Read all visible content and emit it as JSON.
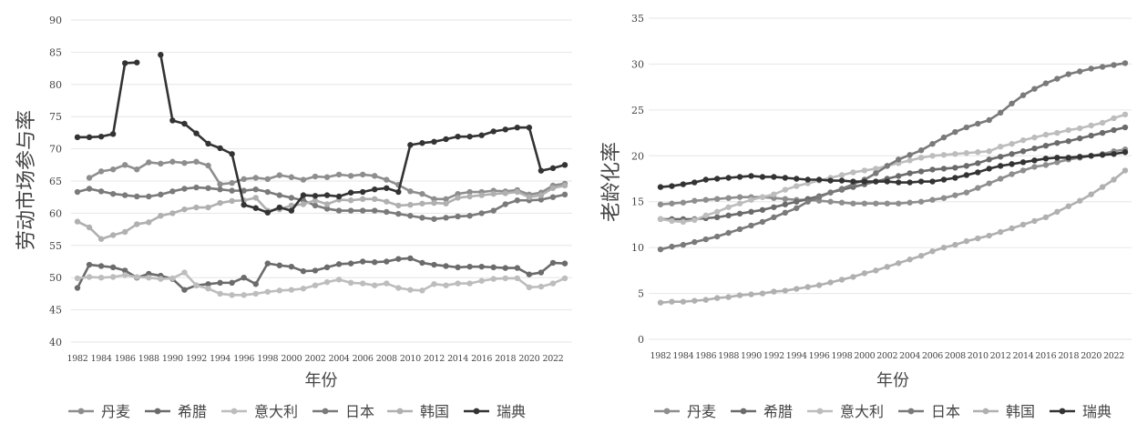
{
  "chart_data": [
    {
      "type": "line",
      "title": "",
      "xlabel": "年份",
      "ylabel": "劳动市场参与率",
      "ylim": [
        40,
        90
      ],
      "yticks": [
        40,
        45,
        50,
        55,
        60,
        65,
        70,
        75,
        80,
        85,
        90
      ],
      "x": [
        1982,
        1983,
        1984,
        1985,
        1986,
        1987,
        1988,
        1989,
        1990,
        1991,
        1992,
        1993,
        1994,
        1995,
        1996,
        1997,
        1998,
        1999,
        2000,
        2001,
        2002,
        2003,
        2004,
        2005,
        2006,
        2007,
        2008,
        2009,
        2010,
        2011,
        2012,
        2013,
        2014,
        2015,
        2016,
        2017,
        2018,
        2019,
        2020,
        2021,
        2022,
        2023
      ],
      "xtick_labels": [
        "1982",
        "1984",
        "1986",
        "1988",
        "1990",
        "1992",
        "1994",
        "1996",
        "1998",
        "2000",
        "2002",
        "2004",
        "2006",
        "2008",
        "2010",
        "2012",
        "2014",
        "2016",
        "2018",
        "2020",
        "2022"
      ],
      "grid": true,
      "legend": "bottom",
      "series": [
        {
          "name": "丹麦",
          "color": "#8e8e8e",
          "values": [
            null,
            65.5,
            66.5,
            66.8,
            67.5,
            66.8,
            67.9,
            67.7,
            68.0,
            67.8,
            68.0,
            67.4,
            64.5,
            64.7,
            65.3,
            65.5,
            65.3,
            65.9,
            65.6,
            65.2,
            65.7,
            65.6,
            66.0,
            65.8,
            66.0,
            65.8,
            65.2,
            64.4,
            63.4,
            63.0,
            62.2,
            62.2,
            63.0,
            63.3,
            63.3,
            63.5,
            63.4,
            63.6,
            62.9,
            63.2,
            64.3,
            64.6
          ]
        },
        {
          "name": "希腊",
          "color": "#6b6b6b",
          "values": [
            48.4,
            52.0,
            51.8,
            51.6,
            51.1,
            50.0,
            50.6,
            50.3,
            49.8,
            48.1,
            48.8,
            49.0,
            49.2,
            49.2,
            50.0,
            49.0,
            52.2,
            51.9,
            51.7,
            51.0,
            51.1,
            51.6,
            52.1,
            52.2,
            52.5,
            52.4,
            52.5,
            52.9,
            53.0,
            52.3,
            52.0,
            51.8,
            51.6,
            51.7,
            51.7,
            51.6,
            51.5,
            51.5,
            50.5,
            50.8,
            52.3,
            52.2
          ]
        },
        {
          "name": "意大利",
          "color": "#bdbdbd",
          "values": [
            49.9,
            50.1,
            50.0,
            50.1,
            50.4,
            50.1,
            50.0,
            49.8,
            49.9,
            50.8,
            48.8,
            48.3,
            47.5,
            47.3,
            47.3,
            47.5,
            47.8,
            48.0,
            48.1,
            48.3,
            48.8,
            49.3,
            49.7,
            49.2,
            49.1,
            48.8,
            49.1,
            48.4,
            48.1,
            48.0,
            49.0,
            48.8,
            49.1,
            49.1,
            49.5,
            49.8,
            49.9,
            49.9,
            48.5,
            48.6,
            49.1,
            49.9
          ]
        },
        {
          "name": "日本",
          "color": "#7a7a7a",
          "values": [
            63.3,
            63.8,
            63.4,
            63.0,
            62.8,
            62.6,
            62.6,
            62.9,
            63.4,
            63.8,
            64.0,
            63.9,
            63.7,
            63.5,
            63.5,
            63.7,
            63.3,
            62.8,
            62.4,
            62.0,
            61.2,
            60.7,
            60.4,
            60.4,
            60.4,
            60.4,
            60.2,
            59.9,
            59.6,
            59.3,
            59.1,
            59.3,
            59.5,
            59.6,
            60.0,
            60.4,
            61.4,
            62.0,
            62.0,
            62.1,
            62.5,
            62.9
          ]
        },
        {
          "name": "韩国",
          "color": "#b0b0b0",
          "values": [
            58.7,
            57.8,
            56.0,
            56.6,
            57.1,
            58.3,
            58.6,
            59.6,
            60.0,
            60.6,
            60.9,
            60.9,
            61.6,
            61.9,
            62.0,
            62.4,
            60.4,
            60.6,
            61.2,
            61.4,
            62.0,
            61.4,
            62.1,
            62.0,
            62.2,
            62.2,
            61.8,
            61.2,
            61.3,
            61.5,
            61.6,
            61.5,
            62.4,
            62.6,
            62.8,
            63.0,
            63.1,
            63.3,
            62.5,
            62.8,
            63.9,
            64.3
          ]
        },
        {
          "name": "瑞典",
          "color": "#333333",
          "values": [
            71.8,
            71.8,
            71.9,
            72.3,
            83.3,
            83.4,
            null,
            84.6,
            74.4,
            73.9,
            72.4,
            70.8,
            70.1,
            69.2,
            61.3,
            60.8,
            60.1,
            60.9,
            60.4,
            62.8,
            62.7,
            62.8,
            62.6,
            63.2,
            63.3,
            63.7,
            63.9,
            63.3,
            70.6,
            70.9,
            71.1,
            71.5,
            71.9,
            71.9,
            72.1,
            72.7,
            73.0,
            73.3,
            73.3,
            66.6,
            67.0,
            67.5
          ]
        }
      ]
    },
    {
      "type": "line",
      "title": "",
      "xlabel": "年份",
      "ylabel": "老龄化率",
      "ylim": [
        0,
        35
      ],
      "yticks": [
        0,
        5,
        10,
        15,
        20,
        25,
        30,
        35
      ],
      "x": [
        1982,
        1983,
        1984,
        1985,
        1986,
        1987,
        1988,
        1989,
        1990,
        1991,
        1992,
        1993,
        1994,
        1995,
        1996,
        1997,
        1998,
        1999,
        2000,
        2001,
        2002,
        2003,
        2004,
        2005,
        2006,
        2007,
        2008,
        2009,
        2010,
        2011,
        2012,
        2013,
        2014,
        2015,
        2016,
        2017,
        2018,
        2019,
        2020,
        2021,
        2022,
        2023
      ],
      "xtick_labels": [
        "1982",
        "1984",
        "1986",
        "1988",
        "1990",
        "1992",
        "1994",
        "1996",
        "1998",
        "2000",
        "2002",
        "2004",
        "2006",
        "2008",
        "2010",
        "2012",
        "2014",
        "2016",
        "2018",
        "2020",
        "2022"
      ],
      "grid": true,
      "legend": "bottom",
      "series": [
        {
          "name": "丹麦",
          "color": "#8e8e8e",
          "values": [
            14.7,
            14.8,
            14.9,
            15.1,
            15.2,
            15.3,
            15.4,
            15.5,
            15.5,
            15.5,
            15.4,
            15.3,
            15.2,
            15.2,
            15.1,
            15.0,
            14.9,
            14.8,
            14.8,
            14.8,
            14.8,
            14.8,
            14.9,
            15.0,
            15.2,
            15.4,
            15.7,
            16.0,
            16.5,
            17.0,
            17.5,
            18.0,
            18.4,
            18.8,
            19.0,
            19.3,
            19.6,
            19.8,
            20.0,
            20.2,
            20.5,
            20.7
          ]
        },
        {
          "name": "希腊",
          "color": "#6b6b6b",
          "values": [
            13.1,
            13.1,
            13.1,
            13.1,
            13.2,
            13.3,
            13.5,
            13.7,
            13.9,
            14.1,
            14.4,
            14.7,
            15.0,
            15.3,
            15.6,
            16.0,
            16.3,
            16.6,
            16.9,
            17.2,
            17.5,
            17.8,
            18.1,
            18.3,
            18.5,
            18.6,
            18.7,
            18.9,
            19.2,
            19.6,
            19.9,
            20.2,
            20.5,
            20.8,
            21.1,
            21.4,
            21.6,
            21.9,
            22.2,
            22.5,
            22.8,
            23.1
          ]
        },
        {
          "name": "意大利",
          "color": "#bdbdbd",
          "values": [
            13.1,
            12.9,
            12.8,
            13.0,
            13.5,
            13.9,
            14.4,
            14.8,
            15.2,
            15.5,
            15.8,
            16.3,
            16.7,
            17.0,
            17.3,
            17.6,
            17.9,
            18.2,
            18.4,
            18.6,
            18.9,
            19.2,
            19.5,
            19.8,
            20.0,
            20.1,
            20.2,
            20.3,
            20.4,
            20.5,
            21.0,
            21.3,
            21.7,
            22.0,
            22.3,
            22.5,
            22.8,
            23.0,
            23.3,
            23.6,
            24.1,
            24.5
          ]
        },
        {
          "name": "日本",
          "color": "#7a7a7a",
          "values": [
            9.8,
            10.1,
            10.3,
            10.6,
            10.9,
            11.2,
            11.6,
            12.0,
            12.4,
            12.8,
            13.3,
            13.8,
            14.3,
            15.0,
            15.5,
            16.0,
            16.4,
            16.9,
            17.4,
            18.1,
            18.9,
            19.6,
            20.1,
            20.6,
            21.3,
            22.0,
            22.6,
            23.1,
            23.5,
            23.9,
            24.7,
            25.7,
            26.6,
            27.3,
            27.9,
            28.4,
            28.9,
            29.2,
            29.5,
            29.7,
            29.9,
            30.1
          ]
        },
        {
          "name": "韩国",
          "color": "#b0b0b0",
          "values": [
            4.0,
            4.1,
            4.1,
            4.2,
            4.3,
            4.5,
            4.6,
            4.8,
            4.9,
            5.0,
            5.2,
            5.3,
            5.5,
            5.7,
            5.9,
            6.2,
            6.5,
            6.8,
            7.2,
            7.5,
            7.9,
            8.3,
            8.7,
            9.1,
            9.6,
            10.0,
            10.3,
            10.7,
            11.0,
            11.3,
            11.7,
            12.1,
            12.5,
            12.9,
            13.3,
            13.9,
            14.5,
            15.1,
            15.8,
            16.6,
            17.4,
            18.4
          ]
        },
        {
          "name": "瑞典",
          "color": "#333333",
          "values": [
            16.6,
            16.7,
            16.9,
            17.1,
            17.4,
            17.5,
            17.6,
            17.7,
            17.8,
            17.7,
            17.7,
            17.6,
            17.5,
            17.4,
            17.4,
            17.3,
            17.3,
            17.2,
            17.2,
            17.2,
            17.2,
            17.1,
            17.1,
            17.2,
            17.2,
            17.4,
            17.6,
            17.9,
            18.2,
            18.6,
            18.9,
            19.1,
            19.3,
            19.5,
            19.7,
            19.8,
            19.8,
            19.9,
            20.0,
            20.1,
            20.2,
            20.4
          ]
        }
      ]
    }
  ]
}
